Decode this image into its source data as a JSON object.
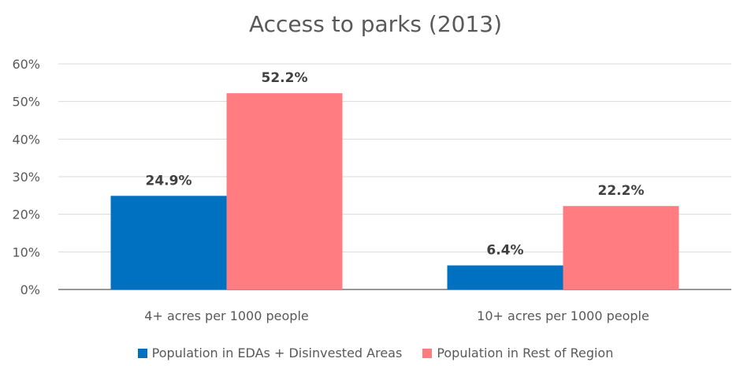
{
  "chart_data": {
    "type": "bar",
    "title": "Access to parks (2013)",
    "categories": [
      "4+ acres per 1000 people",
      "10+ acres per 1000 people"
    ],
    "series": [
      {
        "name": "Population in EDAs + Disinvested Areas",
        "values": [
          24.9,
          6.4
        ],
        "labels": [
          "24.9%",
          "6.4%"
        ],
        "color": "#0070C0"
      },
      {
        "name": "Population in Rest of Region",
        "values": [
          52.2,
          22.2
        ],
        "labels": [
          "52.2%",
          "22.2%"
        ],
        "color": "#FF7C80"
      }
    ],
    "ylim": [
      0,
      60
    ],
    "yticks": [
      0,
      10,
      20,
      30,
      40,
      50,
      60
    ],
    "ytick_labels": [
      "0%",
      "10%",
      "20%",
      "30%",
      "40%",
      "50%",
      "60%"
    ],
    "gridlines": true,
    "legend_position": "bottom",
    "gridline_color": "#D9D9D9"
  }
}
